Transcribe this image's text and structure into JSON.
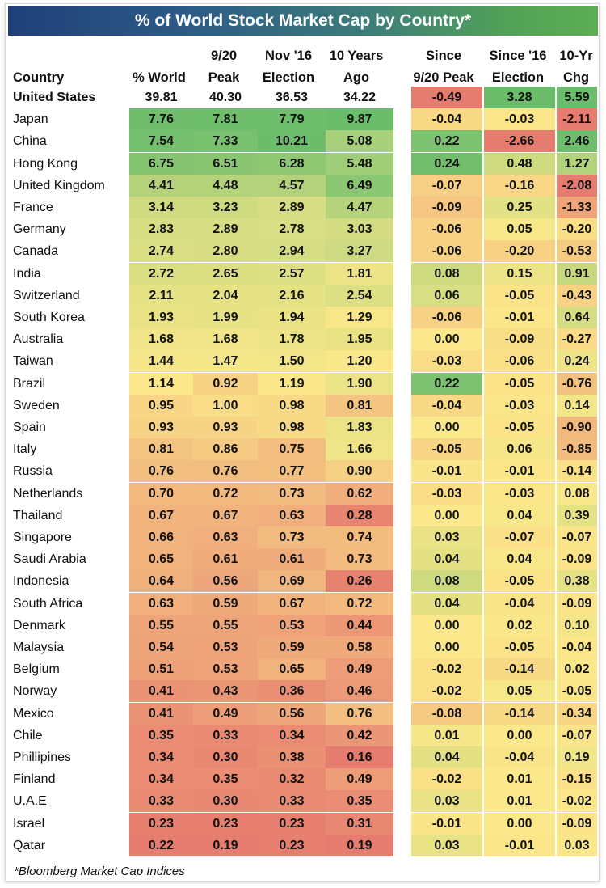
{
  "title": "% of World Stock Market Cap by Country*",
  "footnote": "*Bloomberg Market Cap Indices",
  "headers": {
    "country": "Country",
    "world": "% World",
    "peak_1": "9/20",
    "peak_2": "Peak",
    "election_1": "Nov '16",
    "election_2": "Election",
    "ago_1": "10 Years",
    "ago_2": "Ago",
    "since_peak_1": "Since",
    "since_peak_2": "9/20 Peak",
    "since_election_1": "Since '16",
    "since_election_2": "Election",
    "chg_1": "10-Yr",
    "chg_2": "Chg"
  },
  "colors": {
    "red": "#e67b6f",
    "yellow": "#fbe88a",
    "green": "#6bbd6c"
  },
  "chart_data": {
    "type": "table",
    "title": "% of World Stock Market Cap by Country*",
    "columns": [
      "Country",
      "% World",
      "9/20 Peak",
      "Nov '16 Election",
      "10 Years Ago",
      "Since 9/20 Peak",
      "Since '16 Election",
      "10-Yr Chg"
    ],
    "rows": [
      {
        "country": "United States",
        "values": [
          "39.81",
          "40.30",
          "36.53",
          "34.22",
          "-0.49",
          "3.28",
          "5.59"
        ]
      },
      {
        "country": "Japan",
        "values": [
          "7.76",
          "7.81",
          "7.79",
          "9.87",
          "-0.04",
          "-0.03",
          "-2.11"
        ]
      },
      {
        "country": "China",
        "values": [
          "7.54",
          "7.33",
          "10.21",
          "5.08",
          "0.22",
          "-2.66",
          "2.46"
        ]
      },
      {
        "country": "Hong Kong",
        "values": [
          "6.75",
          "6.51",
          "6.28",
          "5.48",
          "0.24",
          "0.48",
          "1.27"
        ]
      },
      {
        "country": "United Kingdom",
        "values": [
          "4.41",
          "4.48",
          "4.57",
          "6.49",
          "-0.07",
          "-0.16",
          "-2.08"
        ]
      },
      {
        "country": "France",
        "values": [
          "3.14",
          "3.23",
          "2.89",
          "4.47",
          "-0.09",
          "0.25",
          "-1.33"
        ]
      },
      {
        "country": "Germany",
        "values": [
          "2.83",
          "2.89",
          "2.78",
          "3.03",
          "-0.06",
          "0.05",
          "-0.20"
        ]
      },
      {
        "country": "Canada",
        "values": [
          "2.74",
          "2.80",
          "2.94",
          "3.27",
          "-0.06",
          "-0.20",
          "-0.53"
        ]
      },
      {
        "country": "India",
        "values": [
          "2.72",
          "2.65",
          "2.57",
          "1.81",
          "0.08",
          "0.15",
          "0.91"
        ]
      },
      {
        "country": "Switzerland",
        "values": [
          "2.11",
          "2.04",
          "2.16",
          "2.54",
          "0.06",
          "-0.05",
          "-0.43"
        ]
      },
      {
        "country": "South Korea",
        "values": [
          "1.93",
          "1.99",
          "1.94",
          "1.29",
          "-0.06",
          "-0.01",
          "0.64"
        ]
      },
      {
        "country": "Australia",
        "values": [
          "1.68",
          "1.68",
          "1.78",
          "1.95",
          "0.00",
          "-0.09",
          "-0.27"
        ]
      },
      {
        "country": "Taiwan",
        "values": [
          "1.44",
          "1.47",
          "1.50",
          "1.20",
          "-0.03",
          "-0.06",
          "0.24"
        ]
      },
      {
        "country": "Brazil",
        "values": [
          "1.14",
          "0.92",
          "1.19",
          "1.90",
          "0.22",
          "-0.05",
          "-0.76"
        ]
      },
      {
        "country": "Sweden",
        "values": [
          "0.95",
          "1.00",
          "0.98",
          "0.81",
          "-0.04",
          "-0.03",
          "0.14"
        ]
      },
      {
        "country": "Spain",
        "values": [
          "0.93",
          "0.93",
          "0.98",
          "1.83",
          "0.00",
          "-0.05",
          "-0.90"
        ]
      },
      {
        "country": "Italy",
        "values": [
          "0.81",
          "0.86",
          "0.75",
          "1.66",
          "-0.05",
          "0.06",
          "-0.85"
        ]
      },
      {
        "country": "Russia",
        "values": [
          "0.76",
          "0.76",
          "0.77",
          "0.90",
          "-0.01",
          "-0.01",
          "-0.14"
        ]
      },
      {
        "country": "Netherlands",
        "values": [
          "0.70",
          "0.72",
          "0.73",
          "0.62",
          "-0.03",
          "-0.03",
          "0.08"
        ]
      },
      {
        "country": "Thailand",
        "values": [
          "0.67",
          "0.67",
          "0.63",
          "0.28",
          "0.00",
          "0.04",
          "0.39"
        ]
      },
      {
        "country": "Singapore",
        "values": [
          "0.66",
          "0.63",
          "0.73",
          "0.74",
          "0.03",
          "-0.07",
          "-0.07"
        ]
      },
      {
        "country": "Saudi Arabia",
        "values": [
          "0.65",
          "0.61",
          "0.61",
          "0.73",
          "0.04",
          "0.04",
          "-0.09"
        ]
      },
      {
        "country": "Indonesia",
        "values": [
          "0.64",
          "0.56",
          "0.69",
          "0.26",
          "0.08",
          "-0.05",
          "0.38"
        ]
      },
      {
        "country": "South Africa",
        "values": [
          "0.63",
          "0.59",
          "0.67",
          "0.72",
          "0.04",
          "-0.04",
          "-0.09"
        ]
      },
      {
        "country": "Denmark",
        "values": [
          "0.55",
          "0.55",
          "0.53",
          "0.44",
          "0.00",
          "0.02",
          "0.10"
        ]
      },
      {
        "country": "Malaysia",
        "values": [
          "0.54",
          "0.53",
          "0.59",
          "0.58",
          "0.00",
          "-0.05",
          "-0.04"
        ]
      },
      {
        "country": "Belgium",
        "values": [
          "0.51",
          "0.53",
          "0.65",
          "0.49",
          "-0.02",
          "-0.14",
          "0.02"
        ]
      },
      {
        "country": "Norway",
        "values": [
          "0.41",
          "0.43",
          "0.36",
          "0.46",
          "-0.02",
          "0.05",
          "-0.05"
        ]
      },
      {
        "country": "Mexico",
        "values": [
          "0.41",
          "0.49",
          "0.56",
          "0.76",
          "-0.08",
          "-0.14",
          "-0.34"
        ]
      },
      {
        "country": "Chile",
        "values": [
          "0.35",
          "0.33",
          "0.34",
          "0.42",
          "0.01",
          "0.00",
          "-0.07"
        ]
      },
      {
        "country": "Phillipines",
        "values": [
          "0.34",
          "0.30",
          "0.38",
          "0.16",
          "0.04",
          "-0.04",
          "0.19"
        ]
      },
      {
        "country": "Finland",
        "values": [
          "0.34",
          "0.35",
          "0.32",
          "0.49",
          "-0.02",
          "0.01",
          "-0.15"
        ]
      },
      {
        "country": "U.A.E",
        "values": [
          "0.33",
          "0.30",
          "0.33",
          "0.35",
          "0.03",
          "0.01",
          "-0.02"
        ]
      },
      {
        "country": "Israel",
        "values": [
          "0.23",
          "0.23",
          "0.23",
          "0.31",
          "-0.01",
          "0.00",
          "-0.09"
        ]
      },
      {
        "country": "Qatar",
        "values": [
          "0.22",
          "0.19",
          "0.23",
          "0.19",
          "0.03",
          "-0.01",
          "0.03"
        ]
      }
    ]
  }
}
